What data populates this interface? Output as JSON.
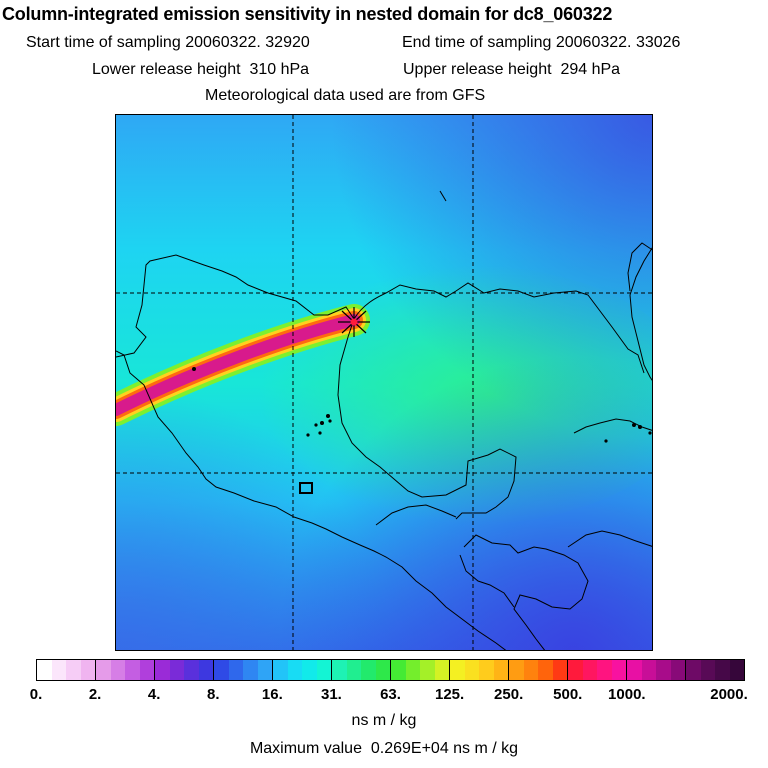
{
  "title": "Column-integrated emission sensitivity in nested domain for dc8_060322",
  "sampling": {
    "start_label": "Start time of sampling",
    "start_value": "20060322. 32920",
    "end_label": "End time of sampling",
    "end_value": "20060322. 33026"
  },
  "release": {
    "lower_label": "Lower release height",
    "lower_value": "310 hPa",
    "upper_label": "Upper release height",
    "upper_value": "294 hPa"
  },
  "met_note": "Meteorological data used are from GFS",
  "colorbar": {
    "ticks": [
      "0.",
      "2.",
      "4.",
      "8.",
      "16.",
      "31.",
      "63.",
      "125.",
      "250.",
      "500.",
      "1000.",
      "2000."
    ],
    "segments": [
      [
        "#ffffff",
        "#fbe6fb",
        "#f6cdf6",
        "#f0b4f0"
      ],
      [
        "#e59be9",
        "#d67ee6",
        "#c45ee2",
        "#b03fdc"
      ],
      [
        "#9a2bd7",
        "#7a2bd8",
        "#5a30dc",
        "#3d38e0"
      ],
      [
        "#2f4ae6",
        "#2f68ec",
        "#2f86f2",
        "#2fa4f6"
      ],
      [
        "#22c4f8",
        "#18dcf4",
        "#12eaea",
        "#14f4d4"
      ],
      [
        "#1ef2b4",
        "#20ee90",
        "#22ea6c",
        "#2ee84a"
      ],
      [
        "#44ea34",
        "#74ee2c",
        "#a4f028",
        "#d4f224"
      ],
      [
        "#f4f022",
        "#fae020",
        "#ffcc1c",
        "#ffb416"
      ],
      [
        "#ff9c12",
        "#ff820e",
        "#ff640c",
        "#ff3a14"
      ],
      [
        "#ff1a3c",
        "#ff1660",
        "#ff1480",
        "#f812a0"
      ],
      [
        "#e810a4",
        "#c80e98",
        "#a80c8a",
        "#880a78"
      ],
      [
        "#6e0a66",
        "#580a56",
        "#460848",
        "#36063a"
      ]
    ]
  },
  "units": "ns m / kg",
  "max_label": "Maximum value",
  "max_value": "0.269E+04 ns m / kg",
  "colors": {
    "background_field": "#22c8f4",
    "plume_core": "#d81a8c",
    "plume_edge": "#ffd21e",
    "marker": "#ff1a3c"
  }
}
